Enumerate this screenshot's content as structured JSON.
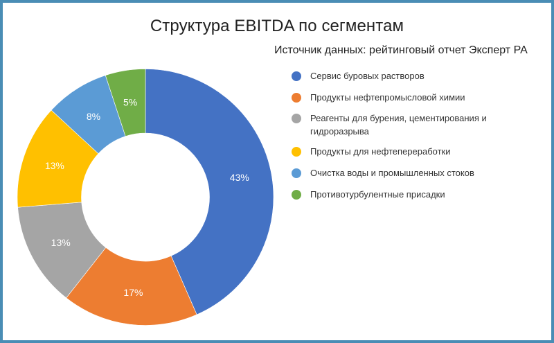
{
  "chart_data": {
    "type": "pie",
    "variant": "donut",
    "title": "Структура EBITDA по сегментам",
    "subtitle": "Источник данных: рейтинговый отчет Эксперт РА",
    "categories": [
      "Сервис буровых растворов",
      "Продукты нефтепромысловой химии",
      "Реагенты для бурения, цементирования и гидроразрыва",
      "Продукты для нефтепереработки",
      "Очистка воды и промышленных стоков",
      "Противотурбулентные присадки"
    ],
    "values": [
      43,
      17,
      13,
      13,
      8,
      5
    ],
    "labels": [
      "43%",
      "17%",
      "13%",
      "13%",
      "8%",
      "5%"
    ],
    "colors": [
      "#4472c4",
      "#ed7d31",
      "#a5a5a5",
      "#ffc000",
      "#5b9bd5",
      "#70ad47"
    ],
    "unit": "%",
    "legend_position": "right",
    "start_angle_deg": 0,
    "direction": "clockwise"
  },
  "legend": {
    "items": [
      {
        "label": "Сервис буровых растворов",
        "color": "#4472c4"
      },
      {
        "label": "Продукты нефтепромысловой химии",
        "color": "#ed7d31"
      },
      {
        "label": "Реагенты для бурения, цементирования и гидроразрыва",
        "color": "#a5a5a5"
      },
      {
        "label": "Продукты для нефтепереработки",
        "color": "#ffc000"
      },
      {
        "label": "Очистка воды и промышленных стоков",
        "color": "#5b9bd5"
      },
      {
        "label": "Противотурбулентные присадки",
        "color": "#70ad47"
      }
    ]
  },
  "frame": {
    "border_color": "#4a8db5"
  }
}
